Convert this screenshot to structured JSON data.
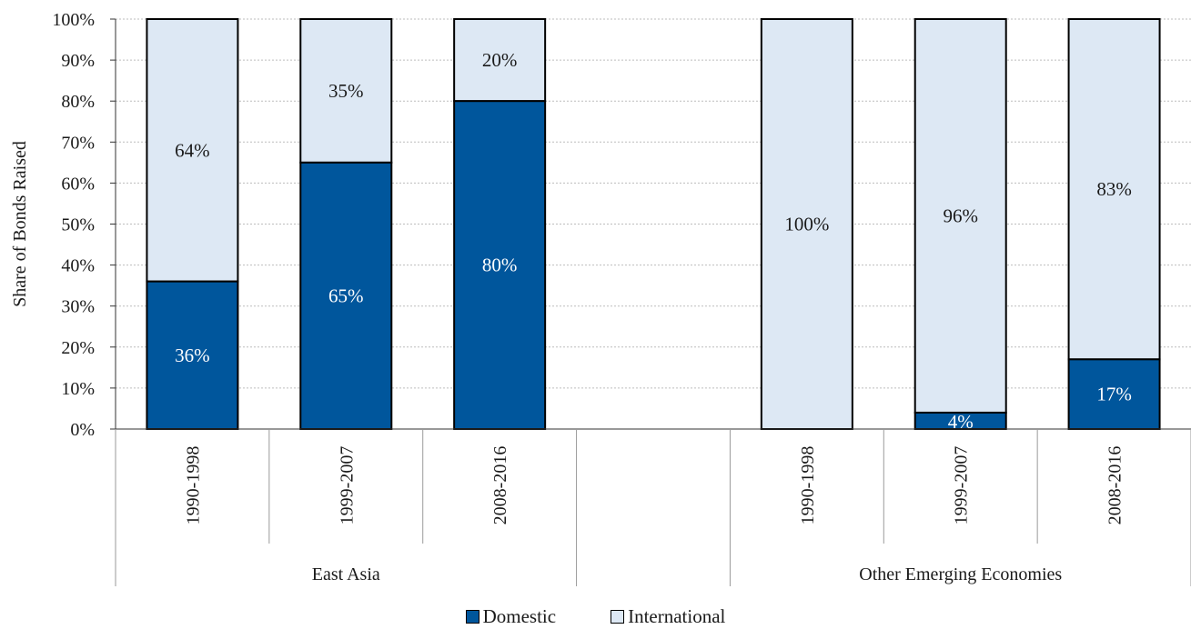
{
  "chart_data": {
    "type": "bar",
    "stacked": true,
    "percent": true,
    "ylabel": "Share of Bonds Raised",
    "ylim": [
      0,
      100
    ],
    "yticks": [
      "0%",
      "10%",
      "20%",
      "30%",
      "40%",
      "50%",
      "60%",
      "70%",
      "80%",
      "90%",
      "100%"
    ],
    "grid": true,
    "legend_position": "bottom",
    "groups": [
      {
        "label": "East Asia",
        "categories": [
          "1990-1998",
          "1999-2007",
          "2008-2016"
        ]
      },
      {
        "label": "",
        "categories": [
          ""
        ]
      },
      {
        "label": "Other Emerging Economies",
        "categories": [
          "1990-1998",
          "1999-2007",
          "2008-2016"
        ]
      }
    ],
    "series": [
      {
        "name": "Domestic",
        "color": "#00569c",
        "values": [
          36,
          65,
          80,
          null,
          0,
          4,
          17
        ],
        "labels": [
          "36%",
          "65%",
          "80%",
          "",
          "",
          "4%",
          "17%"
        ]
      },
      {
        "name": "International",
        "color": "#dde8f4",
        "values": [
          64,
          35,
          20,
          null,
          100,
          96,
          83
        ],
        "labels": [
          "64%",
          "35%",
          "20%",
          "",
          "100%",
          "96%",
          "83%"
        ]
      }
    ]
  },
  "legend": {
    "items": [
      {
        "label": "Domestic",
        "color": "#00569c"
      },
      {
        "label": "International",
        "color": "#dde8f4"
      }
    ]
  }
}
